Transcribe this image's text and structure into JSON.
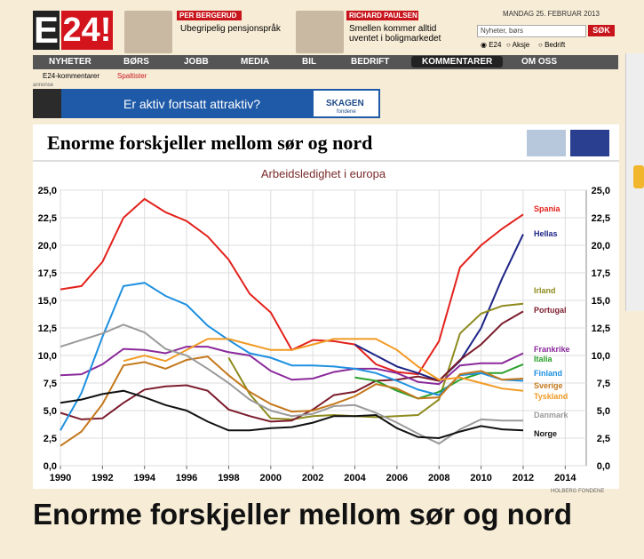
{
  "header": {
    "logo_e": "E",
    "logo_24": "24!",
    "columnists": [
      {
        "name": "PER BERGERUD",
        "title": "Ubegripelig pensjonspråk"
      },
      {
        "name": "RICHARD PAULSEN",
        "title": "Smellen kommer alltid uventet i boligmarkedet"
      }
    ],
    "date": "MANDAG 25. FEBRUAR 2013",
    "search_placeholder": "Nyheter, børs",
    "search_button": "SØK",
    "search_options": [
      "E24",
      "Aksje",
      "Bedrift"
    ]
  },
  "nav": [
    "NYHETER",
    "BØRS",
    "JOBB",
    "MEDIA",
    "BIL",
    "BEDRIFT",
    "KOMMENTARER",
    "OM OSS"
  ],
  "subnav": [
    "E24-kommentarer",
    "Spaltister"
  ],
  "ad": {
    "label": "annonse",
    "text": "Er aktiv fortsatt attraktiv?",
    "brand": "SKAGEN",
    "brand_sub": "fondene"
  },
  "chart_data": {
    "type": "line",
    "title": "Enorme forskjeller mellom sør og nord",
    "subtitle": "Arbeidsledighet i europa",
    "x": [
      1990,
      1991,
      1992,
      1993,
      1994,
      1995,
      1996,
      1997,
      1998,
      1999,
      2000,
      2001,
      2002,
      2003,
      2004,
      2005,
      2006,
      2007,
      2008,
      2009,
      2010,
      2011,
      2012
    ],
    "xlim": [
      1990,
      2015
    ],
    "xticks": [
      1990,
      1992,
      1994,
      1996,
      1998,
      2000,
      2002,
      2004,
      2006,
      2008,
      2010,
      2012,
      2014
    ],
    "ylim": [
      0,
      25
    ],
    "yticks": [
      {
        "value": 0,
        "label": "0,0"
      },
      {
        "value": 2.5,
        "label": "2,5"
      },
      {
        "value": 5,
        "label": "5,0"
      },
      {
        "value": 7.5,
        "label": "7,5"
      },
      {
        "value": 10,
        "label": "10,0"
      },
      {
        "value": 12.5,
        "label": "12,5"
      },
      {
        "value": 15,
        "label": "15,0"
      },
      {
        "value": 17.5,
        "label": "17,5"
      },
      {
        "value": 20,
        "label": "20,0"
      },
      {
        "value": 22.5,
        "label": "22,5"
      },
      {
        "value": 25,
        "label": "25,0"
      }
    ],
    "grid": true,
    "series": [
      {
        "name": "Spania",
        "color": "#e3221c",
        "values": [
          16,
          16.3,
          18.5,
          22.5,
          24.2,
          23,
          22.2,
          20.8,
          18.7,
          15.6,
          13.9,
          10.5,
          11.4,
          11.3,
          11,
          9.2,
          8.5,
          8.3,
          11.3,
          18,
          20,
          21.5,
          22.8
        ]
      },
      {
        "name": "Hellas",
        "color": "#1c2486",
        "values": [
          null,
          null,
          null,
          null,
          null,
          null,
          null,
          null,
          null,
          null,
          null,
          null,
          null,
          null,
          11,
          10,
          9,
          8.4,
          7.7,
          9.5,
          12.5,
          17,
          21
        ]
      },
      {
        "name": "Irland",
        "color": "#8e8b1e",
        "values": [
          null,
          null,
          null,
          null,
          null,
          null,
          null,
          null,
          9.8,
          6.5,
          4.3,
          4.2,
          4.5,
          4.6,
          4.5,
          4.4,
          4.5,
          4.6,
          6,
          12,
          13.8,
          14.5,
          14.7
        ]
      },
      {
        "name": "Portugal",
        "color": "#7c1c2c",
        "values": [
          4.8,
          4.2,
          4.3,
          5.7,
          6.9,
          7.2,
          7.3,
          6.8,
          5.1,
          4.5,
          4,
          4.1,
          5.1,
          6.4,
          6.7,
          7.7,
          7.8,
          8.1,
          7.7,
          9.6,
          11,
          12.9,
          14
        ]
      },
      {
        "name": "Frankrike",
        "color": "#8a2a9a",
        "values": [
          8.2,
          8.3,
          9.2,
          10.6,
          10.5,
          10.2,
          10.8,
          10.8,
          10.3,
          10,
          8.6,
          7.8,
          7.9,
          8.5,
          8.8,
          8.8,
          8.4,
          7.6,
          7.4,
          9.1,
          9.3,
          9.3,
          10.2
        ]
      },
      {
        "name": "Italia",
        "color": "#2aa02a",
        "values": [
          null,
          null,
          null,
          null,
          null,
          null,
          null,
          null,
          null,
          null,
          null,
          null,
          null,
          null,
          8,
          7.7,
          6.8,
          6.1,
          6.7,
          7.8,
          8.4,
          8.4,
          9.2
        ]
      },
      {
        "name": "Finland",
        "color": "#1e90e0",
        "values": [
          3.2,
          6.6,
          11.7,
          16.3,
          16.6,
          15.4,
          14.6,
          12.7,
          11.4,
          10.2,
          9.8,
          9.1,
          9.1,
          9,
          8.8,
          8.4,
          7.7,
          6.9,
          6.4,
          8.2,
          8.4,
          7.8,
          7.7
        ]
      },
      {
        "name": "Sverige",
        "color": "#c4781c",
        "values": [
          1.8,
          3.1,
          5.6,
          9.1,
          9.4,
          8.8,
          9.6,
          9.9,
          8.2,
          6.7,
          5.6,
          4.9,
          5,
          5.6,
          6.3,
          7.4,
          7,
          6.1,
          6.2,
          8.3,
          8.6,
          7.8,
          7.9
        ]
      },
      {
        "name": "Tyskland",
        "color": "#f29a24",
        "values": [
          null,
          null,
          null,
          9.5,
          10,
          9.5,
          10.5,
          11.5,
          11.5,
          11,
          10.5,
          10.5,
          11,
          11.5,
          11.5,
          11.5,
          10.5,
          9,
          7.8,
          8,
          7.5,
          7,
          6.8
        ]
      },
      {
        "name": "Danmark",
        "color": "#9a9a9a",
        "values": [
          10.8,
          11.4,
          12,
          12.8,
          12.1,
          10.6,
          10,
          8.8,
          7.5,
          6,
          5,
          4.5,
          4.7,
          5.4,
          5.5,
          4.8,
          3.9,
          2.9,
          2,
          3.3,
          4.2,
          4.1,
          4.1
        ]
      },
      {
        "name": "Norge",
        "color": "#111111",
        "values": [
          5.7,
          6,
          6.5,
          6.8,
          6.2,
          5.5,
          5,
          4,
          3.2,
          3.2,
          3.4,
          3.5,
          3.9,
          4.5,
          4.5,
          4.6,
          3.4,
          2.6,
          2.5,
          3.1,
          3.6,
          3.3,
          3.2
        ]
      }
    ]
  },
  "source": "HOLBERG FONDENE",
  "headline": "Enorme forskjeller mellom sør og nord"
}
